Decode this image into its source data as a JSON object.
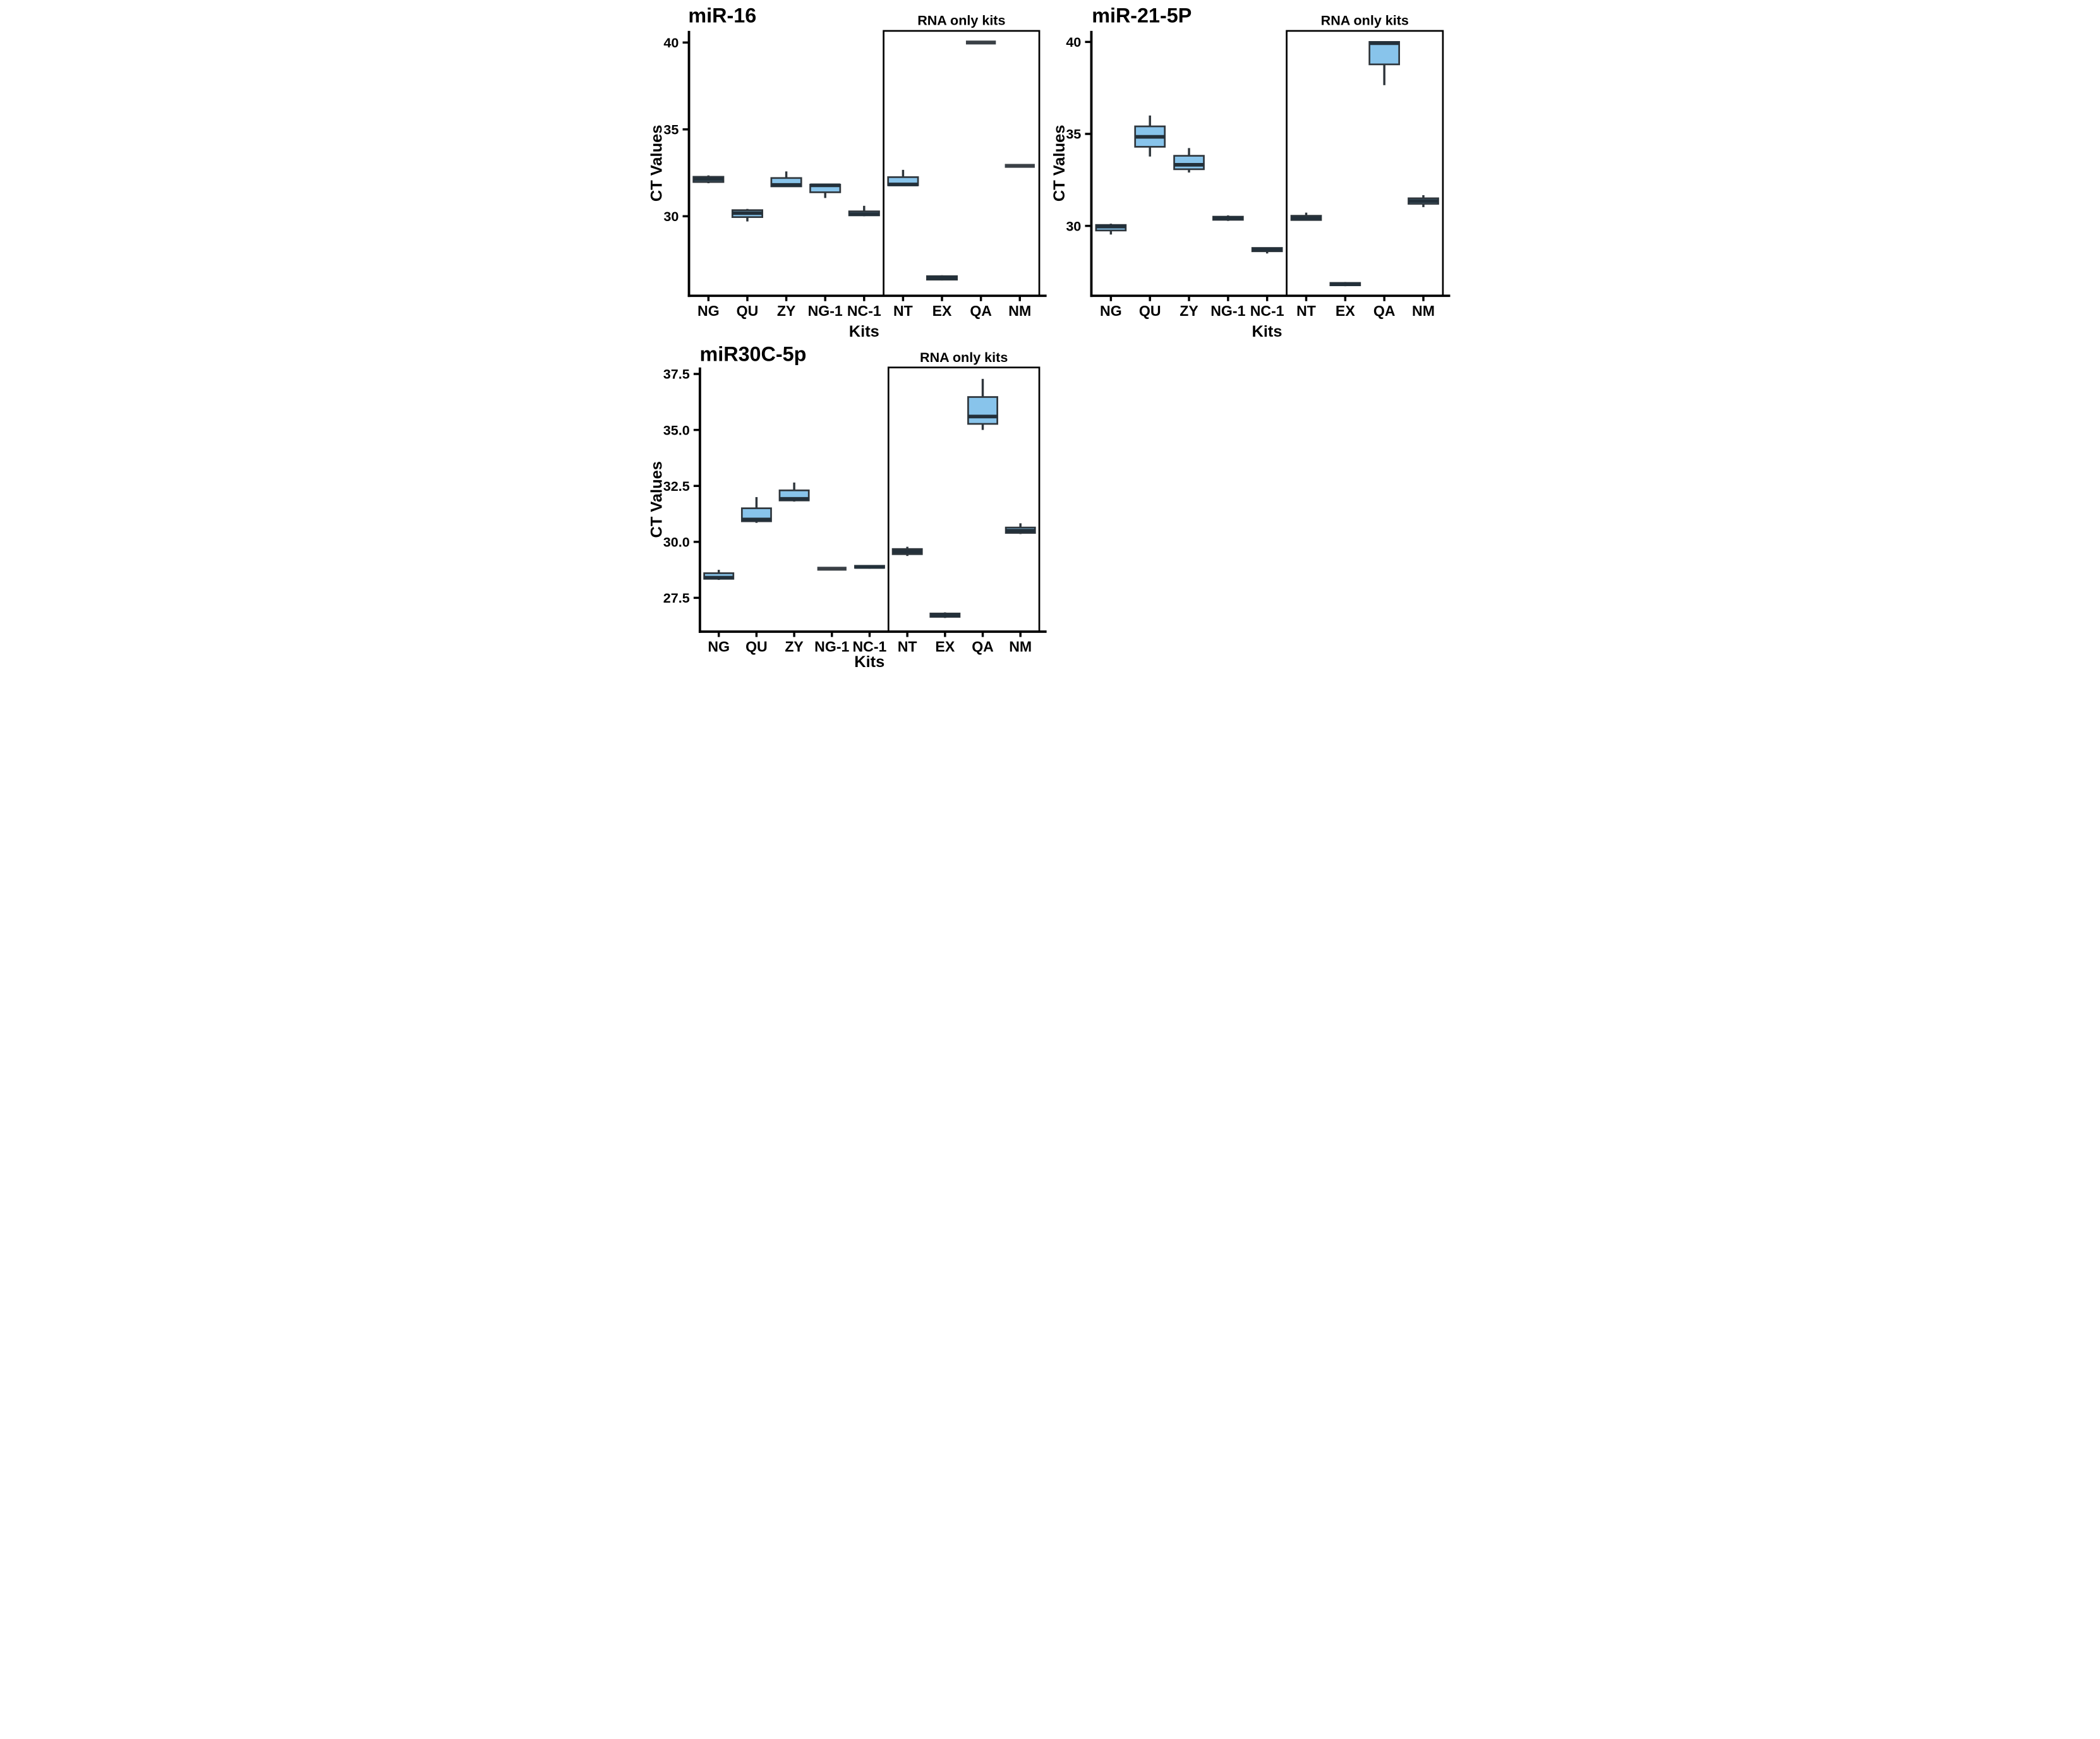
{
  "style": {
    "background": "#FFFFFF",
    "box_fill": "#88C4EB",
    "box_stroke": "#2F363C",
    "median_stroke": "#23303A",
    "flat_stroke": "#3A4046",
    "axis": "#000000",
    "text": "#000000"
  },
  "chart_data": [
    {
      "type": "boxplot",
      "title": "miR-16",
      "ylabel": "CT Values",
      "xlabel": "Kits",
      "annotation": "RNA only kits",
      "grid": false,
      "legend": "none",
      "categories": [
        "NG",
        "QU",
        "ZY",
        "NG-1",
        "NC-1",
        "NT",
        "EX",
        "QA",
        "NM"
      ],
      "rna_only_categories": [
        "NT",
        "EX",
        "QA",
        "NM"
      ],
      "yticks": [
        30,
        35,
        40
      ],
      "ytick_labels": [
        "30",
        "35",
        "40"
      ],
      "ylim": [
        25.42,
        40.67
      ],
      "boxes": [
        {
          "kit": "NG",
          "whislo": 31.9,
          "q1": 31.97,
          "med": 32.13,
          "q3": 32.27,
          "whishi": 32.35
        },
        {
          "kit": "QU",
          "whislo": 29.7,
          "q1": 29.95,
          "med": 30.18,
          "q3": 30.35,
          "whishi": 30.42
        },
        {
          "kit": "ZY",
          "whislo": 31.7,
          "q1": 31.72,
          "med": 31.8,
          "q3": 32.2,
          "whishi": 32.58
        },
        {
          "kit": "NG-1",
          "whislo": 31.05,
          "q1": 31.38,
          "med": 31.78,
          "q3": 31.82,
          "whishi": 31.82
        },
        {
          "kit": "NC-1",
          "whislo": 30.0,
          "q1": 30.05,
          "med": 30.12,
          "q3": 30.28,
          "whishi": 30.6
        },
        {
          "kit": "NT",
          "whislo": 31.75,
          "q1": 31.78,
          "med": 31.83,
          "q3": 32.25,
          "whishi": 32.67
        },
        {
          "kit": "EX",
          "whislo": 26.3,
          "q1": 26.35,
          "med": 26.45,
          "q3": 26.55,
          "whishi": 26.6
        },
        {
          "kit": "QA",
          "flat": 40.0
        },
        {
          "kit": "NM",
          "flat": 32.9,
          "whishi": 33.0
        }
      ]
    },
    {
      "type": "boxplot",
      "title": "miR-21-5P",
      "ylabel": "CT Values",
      "xlabel": "Kits",
      "annotation": "RNA only kits",
      "grid": false,
      "legend": "none",
      "categories": [
        "NG",
        "QU",
        "ZY",
        "NG-1",
        "NC-1",
        "NT",
        "EX",
        "QA",
        "NM"
      ],
      "rna_only_categories": [
        "NT",
        "EX",
        "QA",
        "NM"
      ],
      "yticks": [
        30,
        35,
        40
      ],
      "ytick_labels": [
        "30",
        "35",
        "40"
      ],
      "ylim": [
        26.2,
        40.6
      ],
      "boxes": [
        {
          "kit": "NG",
          "whislo": 29.53,
          "q1": 29.75,
          "med": 29.96,
          "q3": 30.05,
          "whishi": 30.12
        },
        {
          "kit": "QU",
          "whislo": 33.77,
          "q1": 34.3,
          "med": 34.84,
          "q3": 35.41,
          "whishi": 36.0
        },
        {
          "kit": "ZY",
          "whislo": 32.9,
          "q1": 33.08,
          "med": 33.32,
          "q3": 33.81,
          "whishi": 34.23
        },
        {
          "kit": "NG-1",
          "whislo": 30.27,
          "q1": 30.33,
          "med": 30.42,
          "q3": 30.5,
          "whishi": 30.57
        },
        {
          "kit": "NC-1",
          "whislo": 28.5,
          "q1": 28.62,
          "med": 28.72,
          "q3": 28.8,
          "whishi": 28.82
        },
        {
          "kit": "NT",
          "whislo": 30.28,
          "q1": 30.32,
          "med": 30.42,
          "q3": 30.55,
          "whishi": 30.72
        },
        {
          "kit": "EX",
          "whislo": 26.72,
          "q1": 26.77,
          "med": 26.83,
          "q3": 26.9,
          "whishi": 26.95
        },
        {
          "kit": "QA",
          "whislo": 37.65,
          "q1": 38.78,
          "med": 39.93,
          "q3": 40.0,
          "whishi": 40.0
        },
        {
          "kit": "NM",
          "whislo": 31.02,
          "q1": 31.2,
          "med": 31.35,
          "q3": 31.5,
          "whishi": 31.67
        }
      ]
    },
    {
      "type": "boxplot",
      "title": "miR30C-5p",
      "ylabel": "CT Values",
      "xlabel": "Kits",
      "annotation": "RNA only kits",
      "grid": false,
      "legend": "none",
      "categories": [
        "NG",
        "QU",
        "ZY",
        "NG-1",
        "NC-1",
        "NT",
        "EX",
        "QA",
        "NM"
      ],
      "rna_only_categories": [
        "NT",
        "EX",
        "QA",
        "NM"
      ],
      "yticks": [
        27.5,
        30.0,
        32.5,
        35.0,
        37.5
      ],
      "ytick_labels": [
        "27.5",
        "30.0",
        "32.5",
        "35.0",
        "37.5"
      ],
      "ylim": [
        25.99,
        37.79
      ],
      "boxes": [
        {
          "kit": "NG",
          "whislo": 28.3,
          "q1": 28.35,
          "med": 28.4,
          "q3": 28.6,
          "whishi": 28.75
        },
        {
          "kit": "QU",
          "whislo": 30.85,
          "q1": 30.92,
          "med": 31.0,
          "q3": 31.5,
          "whishi": 32.0
        },
        {
          "kit": "ZY",
          "whislo": 31.8,
          "q1": 31.85,
          "med": 31.92,
          "q3": 32.3,
          "whishi": 32.65
        },
        {
          "kit": "NG-1",
          "flat": 28.8
        },
        {
          "kit": "NC-1",
          "whislo": 28.8,
          "q1": 28.84,
          "med": 28.88,
          "q3": 28.93,
          "whishi": 28.96
        },
        {
          "kit": "NT",
          "whislo": 29.37,
          "q1": 29.45,
          "med": 29.56,
          "q3": 29.68,
          "whishi": 29.78
        },
        {
          "kit": "EX",
          "whislo": 26.6,
          "q1": 26.65,
          "med": 26.72,
          "q3": 26.8,
          "whishi": 26.85
        },
        {
          "kit": "QA",
          "whislo": 35.0,
          "q1": 35.27,
          "med": 35.6,
          "q3": 36.47,
          "whishi": 37.28
        },
        {
          "kit": "NM",
          "whislo": 30.35,
          "q1": 30.4,
          "med": 30.5,
          "q3": 30.64,
          "whishi": 30.83
        }
      ]
    }
  ]
}
